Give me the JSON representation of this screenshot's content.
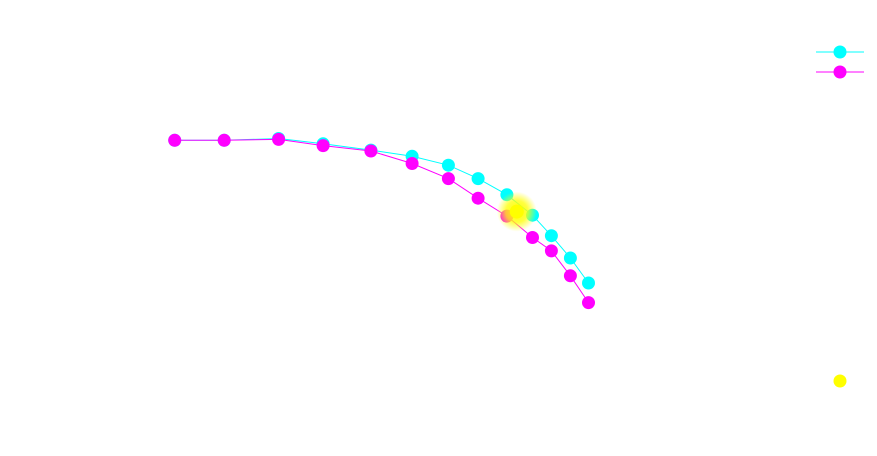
{
  "chart_data": {
    "type": "line",
    "title": "",
    "xlabel": "",
    "ylabel": "",
    "grid": false,
    "legend_position": "top-right",
    "series": [
      {
        "color": "#00ffff",
        "points": [
          [
            0.0,
            0.0
          ],
          [
            0.06,
            0.0
          ],
          [
            0.126,
            0.002
          ],
          [
            0.18,
            -0.004
          ],
          [
            0.238,
            -0.011
          ],
          [
            0.288,
            -0.018
          ],
          [
            0.332,
            -0.028
          ],
          [
            0.368,
            -0.043
          ],
          [
            0.403,
            -0.061
          ],
          [
            0.434,
            -0.084
          ],
          [
            0.457,
            -0.107
          ],
          [
            0.48,
            -0.132
          ],
          [
            0.502,
            -0.16
          ]
        ]
      },
      {
        "color": "#ff00ff",
        "points": [
          [
            0.0,
            0.0
          ],
          [
            0.06,
            0.0
          ],
          [
            0.126,
            0.001
          ],
          [
            0.18,
            -0.006
          ],
          [
            0.238,
            -0.012
          ],
          [
            0.288,
            -0.026
          ],
          [
            0.332,
            -0.043
          ],
          [
            0.368,
            -0.065
          ],
          [
            0.403,
            -0.085
          ],
          [
            0.434,
            -0.109
          ],
          [
            0.457,
            -0.124
          ],
          [
            0.48,
            -0.152
          ],
          [
            0.502,
            -0.182
          ]
        ]
      }
    ],
    "highlight_markers": [
      {
        "color": "#ffff00",
        "point": [
          0.415,
          -0.08
        ]
      }
    ],
    "legend_extra_marker_color": "#ffff00",
    "xlim": [
      -0.03,
      0.71
    ],
    "ylim": [
      -0.28,
      0.09
    ]
  }
}
